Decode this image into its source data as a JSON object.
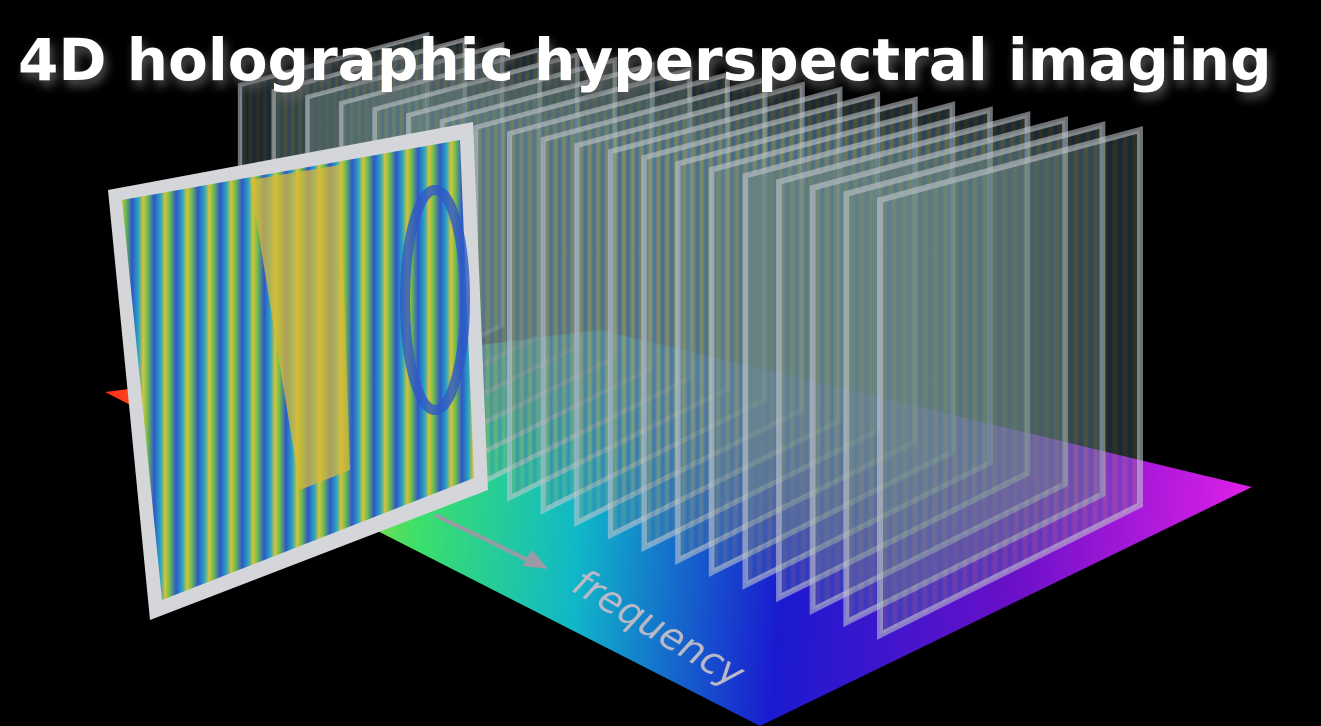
{
  "title": "4D holographic hyperspectral imaging",
  "axis_label": "frequency"
}
